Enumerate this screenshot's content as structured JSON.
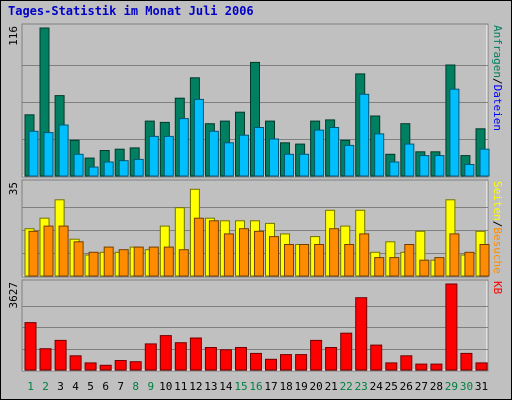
{
  "title": "Tages-Statistik im Monat Juli 2006",
  "chart_data": [
    {
      "type": "bar",
      "name": "hits-files",
      "ymax_label": "116",
      "ylim": [
        0,
        116
      ],
      "categories": [
        "1",
        "2",
        "3",
        "4",
        "5",
        "6",
        "7",
        "8",
        "9",
        "10",
        "11",
        "12",
        "13",
        "14",
        "15",
        "16",
        "17",
        "18",
        "19",
        "20",
        "21",
        "22",
        "23",
        "24",
        "25",
        "26",
        "27",
        "28",
        "29",
        "30",
        "31"
      ],
      "right_label_1": "Anfragen",
      "right_label_sep": "/",
      "right_label_2": "Dateien",
      "series": [
        {
          "name": "Anfragen",
          "color": "#008060",
          "values": [
            48,
            116,
            63,
            28,
            14,
            20,
            21,
            22,
            43,
            42,
            61,
            77,
            41,
            43,
            50,
            89,
            43,
            26,
            25,
            43,
            44,
            28,
            80,
            47,
            17,
            41,
            19,
            19,
            87,
            16,
            37
          ]
        },
        {
          "name": "Dateien",
          "color": "#00bfff",
          "values": [
            35,
            34,
            40,
            17,
            7,
            11,
            12,
            13,
            31,
            31,
            45,
            60,
            35,
            26,
            32,
            38,
            29,
            17,
            17,
            36,
            38,
            24,
            64,
            33,
            11,
            25,
            16,
            16,
            68,
            9,
            21
          ]
        }
      ]
    },
    {
      "type": "bar",
      "name": "pages-visits",
      "ymax_label": "35",
      "ylim": [
        0,
        35
      ],
      "right_label_1": "Seiten",
      "right_label_sep": "/",
      "right_label_2": "Besuche",
      "series": [
        {
          "name": "Seiten",
          "color": "#ffff00",
          "values": [
            18,
            22,
            29,
            14,
            8,
            9,
            9,
            11,
            10,
            19,
            26,
            33,
            22,
            21,
            21,
            21,
            20,
            16,
            12,
            15,
            25,
            19,
            25,
            9,
            13,
            9,
            17,
            6,
            29,
            8,
            17
          ]
        },
        {
          "name": "Besuche",
          "color": "#ff8c00",
          "values": [
            17,
            19,
            19,
            13,
            9,
            11,
            10,
            11,
            11,
            11,
            10,
            22,
            21,
            16,
            18,
            17,
            15,
            12,
            12,
            12,
            18,
            12,
            16,
            7,
            7,
            12,
            6,
            7,
            16,
            9,
            12
          ]
        }
      ]
    },
    {
      "type": "bar",
      "name": "kb",
      "ymax_label": "3627",
      "ylim": [
        0,
        3627
      ],
      "right_label_1": "KB",
      "series": [
        {
          "name": "KB",
          "color": "#ff0000",
          "values": [
            2000,
            900,
            1250,
            600,
            300,
            200,
            400,
            350,
            1100,
            1450,
            1150,
            1350,
            950,
            850,
            950,
            700,
            450,
            650,
            650,
            1250,
            950,
            1550,
            3050,
            1050,
            300,
            600,
            250,
            250,
            3627,
            700,
            300
          ]
        }
      ]
    }
  ],
  "weekend_days": [
    "1",
    "2",
    "8",
    "9",
    "15",
    "16",
    "22",
    "23",
    "29",
    "30"
  ],
  "colors": {
    "weekday": "#000000",
    "weekend": "#008040",
    "grid": "#808080",
    "plot_bg": "#c0c0c0"
  }
}
